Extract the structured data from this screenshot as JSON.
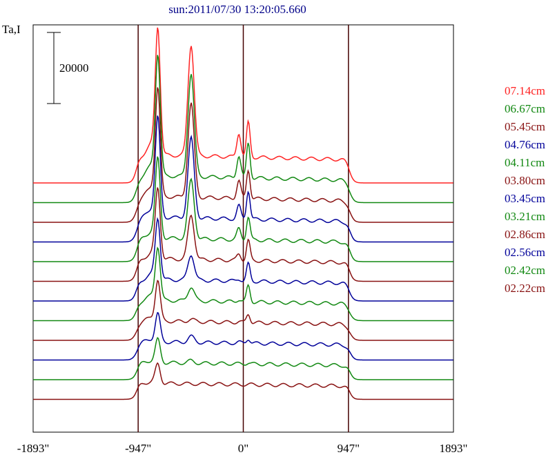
{
  "chart_data": {
    "type": "line",
    "title": "sun:2011/07/30 13:20:05.660",
    "ylabel": "Ta,I",
    "scale_bar_label": "20000",
    "scale_bar_value": 20000,
    "x_ticks": [
      {
        "value": -1893,
        "label": "-1893\""
      },
      {
        "value": -947,
        "label": "-947\""
      },
      {
        "value": 0,
        "label": "0\""
      },
      {
        "value": 947,
        "label": "947\""
      },
      {
        "value": 1893,
        "label": "1893\""
      }
    ],
    "xlim": [
      -1893,
      1893
    ],
    "vertical_lines": [
      -947,
      0,
      947
    ],
    "series": [
      {
        "name": "07.14cm",
        "color": "#ff2222",
        "peaks": [
          1,
          0.95,
          0.55,
          0.6
        ]
      },
      {
        "name": "06.67cm",
        "color": "#118811",
        "peaks": [
          0.95,
          0.88,
          0.5,
          0.6
        ]
      },
      {
        "name": "05.45cm",
        "color": "#881111",
        "peaks": [
          0.85,
          0.8,
          0.4,
          0.5
        ]
      },
      {
        "name": "04.76cm",
        "color": "#000099",
        "peaks": [
          0.78,
          0.68,
          0.3,
          0.5
        ]
      },
      {
        "name": "04.11cm",
        "color": "#118811",
        "peaks": [
          0.62,
          0.5,
          0.25,
          0.4
        ]
      },
      {
        "name": "03.80cm",
        "color": "#881111",
        "peaks": [
          0.55,
          0.38,
          0.15,
          0.35
        ]
      },
      {
        "name": "03.45cm",
        "color": "#000099",
        "peaks": [
          0.48,
          0.22,
          0.05,
          0.3
        ]
      },
      {
        "name": "03.21cm",
        "color": "#118811",
        "peaks": [
          0.42,
          0.12,
          0.05,
          0.28
        ]
      },
      {
        "name": "02.86cm",
        "color": "#881111",
        "peaks": [
          0.32,
          0.02,
          0.02,
          0.15
        ]
      },
      {
        "name": "02.56cm",
        "color": "#000099",
        "peaks": [
          0.22,
          0.05,
          0.02,
          0.08
        ]
      },
      {
        "name": "02.42cm",
        "color": "#118811",
        "peaks": [
          0.18,
          0.02,
          0.0,
          0.02
        ]
      },
      {
        "name": "02.22cm",
        "color": "#881111",
        "peaks": [
          0.15,
          0.0,
          0.0,
          0.0
        ]
      }
    ]
  }
}
